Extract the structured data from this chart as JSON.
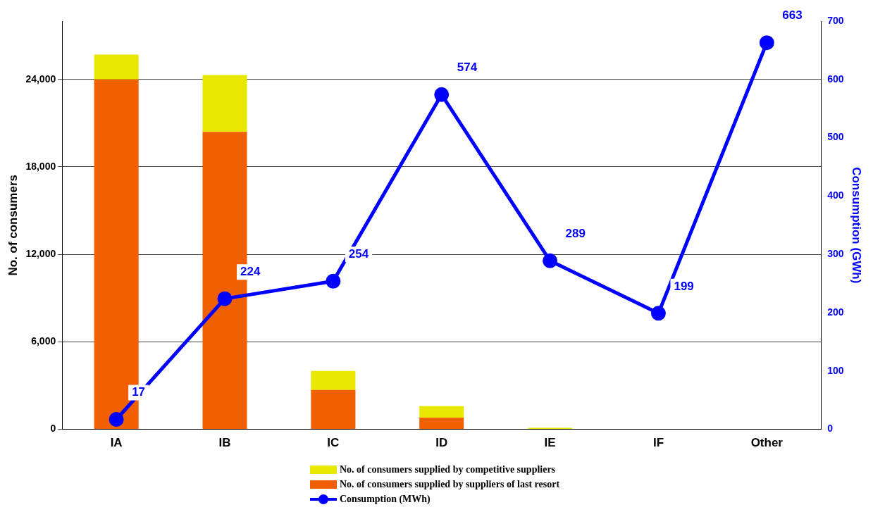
{
  "chart_data": {
    "type": "bar",
    "stacked": true,
    "categories": [
      "IA",
      "IB",
      "IC",
      "ID",
      "IE",
      "IF",
      "Other"
    ],
    "ylabel": "No. of consumers",
    "y2label": "Consumption (GWh)",
    "ylim": [
      0,
      28000
    ],
    "yticks": [
      {
        "value": 0,
        "label": "0"
      },
      {
        "value": 6000,
        "label": "6,000"
      },
      {
        "value": 12000,
        "label": "12,000"
      },
      {
        "value": 18000,
        "label": "18,000"
      },
      {
        "value": 24000,
        "label": "24,000"
      }
    ],
    "y2lim": [
      0,
      700
    ],
    "y2ticks": [
      0,
      100,
      200,
      300,
      400,
      500,
      600,
      700
    ],
    "grid": "y",
    "legend": "bottom",
    "series": [
      {
        "name": "No. of consumers supplied by suppliers of last resort",
        "color": "#f06000",
        "values": [
          24000,
          20400,
          2700,
          800,
          null,
          0,
          0
        ]
      },
      {
        "name": "No. of consumers supplied by competitive suppliers",
        "color": "#e8e800",
        "values": [
          1700,
          3900,
          1300,
          800,
          100,
          0,
          0
        ]
      },
      {
        "name": "Consumption (MWh)",
        "type": "line",
        "axis": "y2",
        "color": "#0000ff",
        "marker": "circle",
        "data_labels": true,
        "values": [
          17,
          224,
          254,
          574,
          289,
          199,
          663
        ]
      }
    ]
  }
}
